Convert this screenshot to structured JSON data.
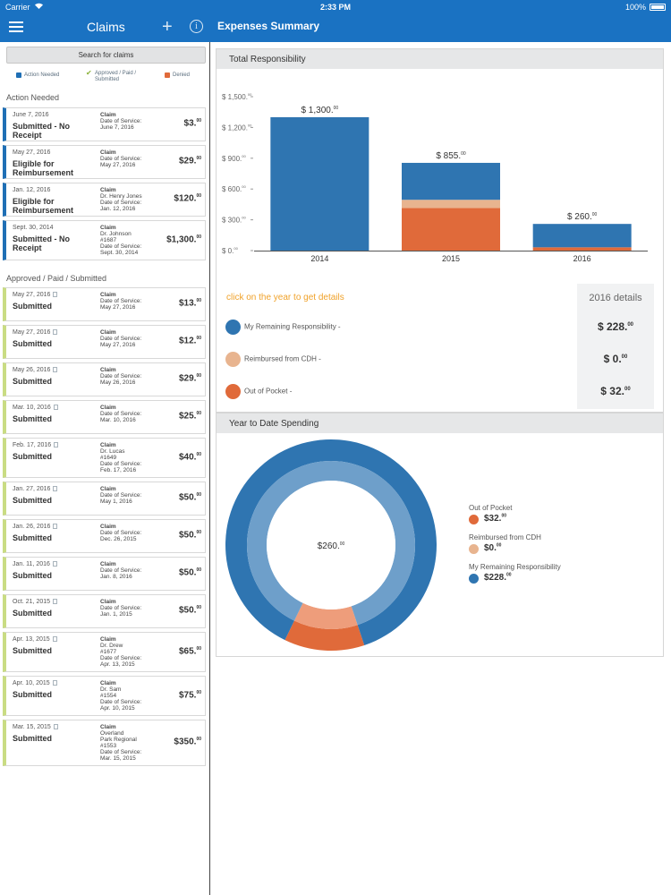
{
  "status_bar": {
    "carrier": "Carrier",
    "wifi_icon": "wifi-icon",
    "time": "2:33 PM",
    "battery": "100%"
  },
  "nav": {
    "claims_title": "Claims",
    "expenses_title": "Expenses Summary"
  },
  "sidebar": {
    "search_label": "Search for claims",
    "legend": [
      {
        "label": "Action Needed",
        "color": "#1f6fb5"
      },
      {
        "label": "Approved / Paid / Submitted",
        "color": "#8ab238"
      },
      {
        "label": "Denied",
        "color": "#e06a3a"
      }
    ],
    "action_needed_header": "Action Needed",
    "approved_header": "Approved / Paid / Submitted",
    "action_needed": [
      {
        "date": "June 7, 2016",
        "status": "Submitted - No Receipt",
        "detail": [
          "Claim",
          "Date of Service:",
          "June 7, 2016"
        ],
        "amount": "$3.",
        "cents": "00"
      },
      {
        "date": "May 27, 2016",
        "status": "Eligible for Reimbursement",
        "detail": [
          "Claim",
          "Date of Service:",
          "May 27, 2016"
        ],
        "amount": "$29.",
        "cents": "00"
      },
      {
        "date": "Jan. 12, 2016",
        "status": "Eligible for Reimbursement",
        "detail": [
          "Claim",
          "Dr. Henry Jones",
          "Date of Service:",
          "Jan. 12, 2016"
        ],
        "amount": "$120.",
        "cents": "00"
      },
      {
        "date": "Sept. 30, 2014",
        "status": "Submitted - No Receipt",
        "detail": [
          "Claim",
          "Dr. Johnson",
          "#1687",
          "Date of Service:",
          "Sept. 30, 2014"
        ],
        "amount": "$1,300.",
        "cents": "00"
      }
    ],
    "approved": [
      {
        "date": "May 27, 2016",
        "status": "Submitted",
        "detail": [
          "Claim",
          "Date of Service:",
          "May 27, 2016"
        ],
        "amount": "$13.",
        "cents": "00"
      },
      {
        "date": "May 27, 2016",
        "status": "Submitted",
        "detail": [
          "Claim",
          "Date of Service:",
          "May 27, 2016"
        ],
        "amount": "$12.",
        "cents": "00"
      },
      {
        "date": "May 26, 2016",
        "status": "Submitted",
        "detail": [
          "Claim",
          "Date of Service:",
          "May 26, 2016"
        ],
        "amount": "$29.",
        "cents": "00"
      },
      {
        "date": "Mar. 10, 2016",
        "status": "Submitted",
        "detail": [
          "Claim",
          "Date of Service:",
          "Mar. 10, 2016"
        ],
        "amount": "$25.",
        "cents": "00"
      },
      {
        "date": "Feb. 17, 2016",
        "status": "Submitted",
        "detail": [
          "Claim",
          "Dr. Lucas",
          "#1649",
          "Date of Service:",
          "Feb. 17, 2016"
        ],
        "amount": "$40.",
        "cents": "00"
      },
      {
        "date": "Jan. 27, 2016",
        "status": "Submitted",
        "detail": [
          "Claim",
          "Date of Service:",
          "May 1, 2016"
        ],
        "amount": "$50.",
        "cents": "00"
      },
      {
        "date": "Jan. 26, 2016",
        "status": "Submitted",
        "detail": [
          "Claim",
          "Date of Service:",
          "Dec. 26, 2015"
        ],
        "amount": "$50.",
        "cents": "00"
      },
      {
        "date": "Jan. 11, 2016",
        "status": "Submitted",
        "detail": [
          "Claim",
          "Date of Service:",
          "Jan. 8, 2016"
        ],
        "amount": "$50.",
        "cents": "00"
      },
      {
        "date": "Oct. 21, 2015",
        "status": "Submitted",
        "detail": [
          "Claim",
          "Date of Service:",
          "Jan. 1, 2015"
        ],
        "amount": "$50.",
        "cents": "00"
      },
      {
        "date": "Apr. 13, 2015",
        "status": "Submitted",
        "detail": [
          "Claim",
          "Dr. Drew",
          "#1677",
          "Date of Service:",
          "Apr. 13, 2015"
        ],
        "amount": "$65.",
        "cents": "00"
      },
      {
        "date": "Apr. 10, 2015",
        "status": "Submitted",
        "detail": [
          "Claim",
          "Dr. Sam",
          "#1554",
          "Date of Service:",
          "Apr. 10, 2015"
        ],
        "amount": "$75.",
        "cents": "00"
      },
      {
        "date": "Mar. 15, 2015",
        "status": "Submitted",
        "detail": [
          "Claim",
          "Overland",
          "Park Regional",
          "#1553",
          "Date of Service:",
          "Mar. 15, 2015"
        ],
        "amount": "$350.",
        "cents": "00"
      }
    ]
  },
  "total_responsibility": {
    "title": "Total Responsibility",
    "hint": "click on the year to get details",
    "details_header": "2016 details",
    "legend": [
      {
        "label": "My Remaining Responsibility -",
        "color": "#2f75b1",
        "value": "$ 228.",
        "cents": "00"
      },
      {
        "label": "Reimbursed from CDH -",
        "color": "#e8b48f",
        "value": "$ 0.",
        "cents": "00"
      },
      {
        "label": "Out of Pocket -",
        "color": "#e06a3a",
        "value": "$ 32.",
        "cents": "00"
      }
    ]
  },
  "ytd": {
    "title": "Year to Date Spending",
    "center": "$260.",
    "center_cents": "00",
    "legend": [
      {
        "label": "Out of Pocket",
        "value": "$32.",
        "cents": "00",
        "color": "#e06a3a"
      },
      {
        "label": "Reimbursed from CDH",
        "value": "$0.",
        "cents": "00",
        "color": "#e8b48f"
      },
      {
        "label": "My Remaining Responsibility",
        "value": "$228.",
        "cents": "00",
        "color": "#2f75b1"
      }
    ]
  },
  "chart_data": [
    {
      "type": "bar",
      "title": "Total Responsibility",
      "categories": [
        "2014",
        "2015",
        "2016"
      ],
      "stacked": true,
      "series": [
        {
          "name": "My Remaining Responsibility",
          "values": [
            1300,
            360,
            228
          ],
          "color": "#2f75b1"
        },
        {
          "name": "Reimbursed from CDH",
          "values": [
            0,
            80,
            0
          ],
          "color": "#e8b48f"
        },
        {
          "name": "Out of Pocket",
          "values": [
            0,
            415,
            32
          ],
          "color": "#e06a3a"
        }
      ],
      "totals_labels": [
        "$ 1,300.",
        "$ 855.",
        "$ 260."
      ],
      "totals_cents": "00",
      "ylim": [
        0,
        1500
      ],
      "yticks": [
        0,
        300,
        600,
        900,
        1200,
        1500
      ],
      "ytick_labels": [
        "$ 0.",
        "$ 300.",
        "$ 600.",
        "$ 900.",
        "$ 1,200.",
        "$ 1,500."
      ],
      "ytick_cents": "00",
      "grid": false
    },
    {
      "type": "pie",
      "title": "Year to Date Spending",
      "donut": true,
      "labels": [
        "Out of Pocket",
        "Reimbursed from CDH",
        "My Remaining Responsibility"
      ],
      "values": [
        32,
        0,
        228
      ],
      "center_label": "$260.",
      "center_cents": "00"
    }
  ]
}
